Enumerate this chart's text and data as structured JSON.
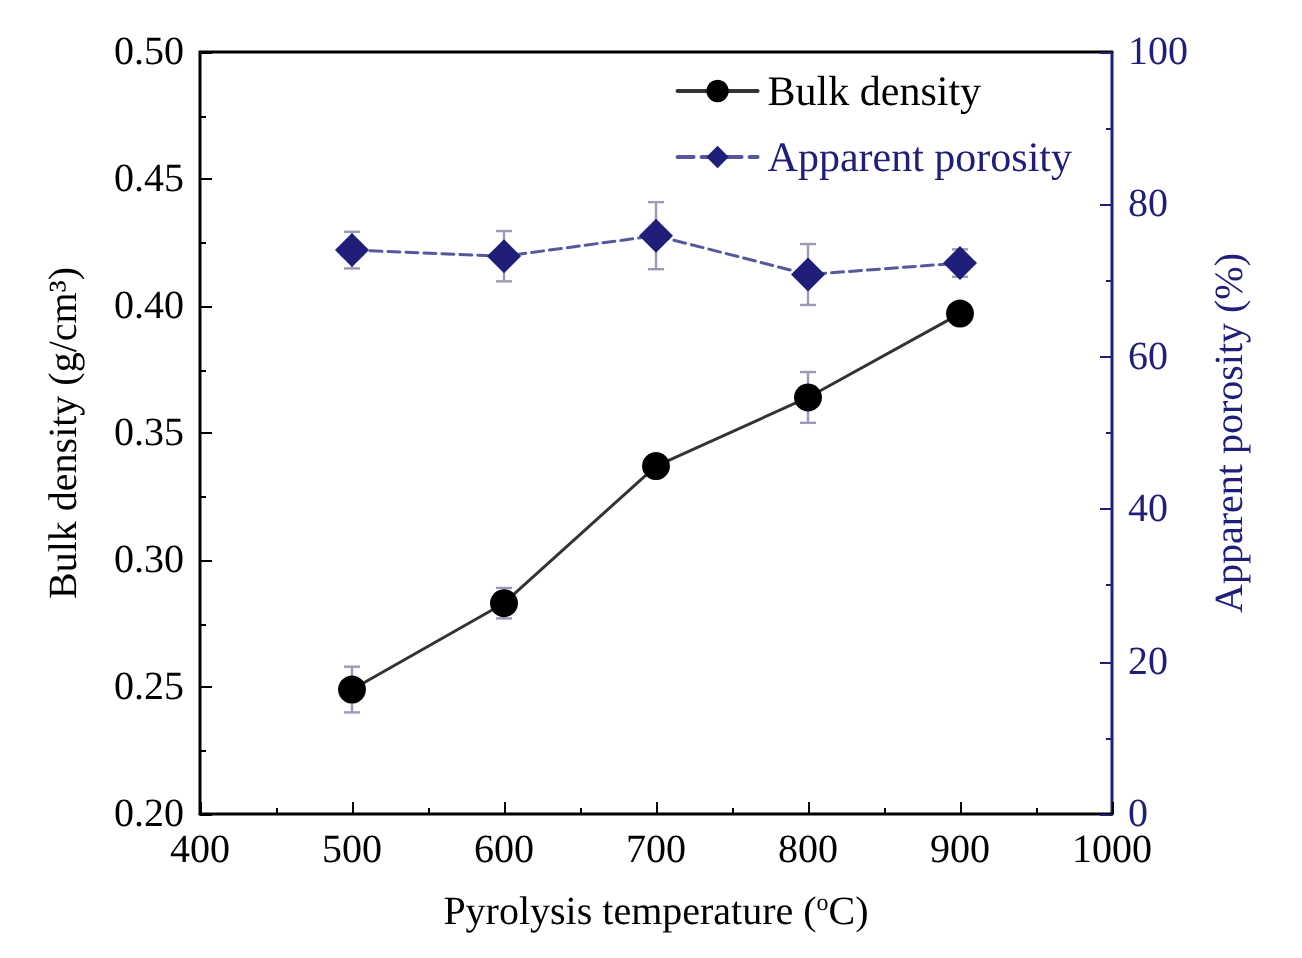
{
  "chart_data": {
    "type": "line",
    "xlabel": "Pyrolysis temperature ($^{o}$C)",
    "ylabel": "Bulk density (g/cm³)",
    "y2label": "Apparent porosity (%)",
    "x": [
      500,
      600,
      700,
      800,
      900
    ],
    "series": [
      {
        "name": "Bulk density",
        "color": "#000000",
        "marker": "circle",
        "line_style": "solid",
        "values": [
          0.249,
          0.283,
          0.337,
          0.364,
          0.397
        ],
        "errors": [
          0.009,
          0.006,
          null,
          0.01,
          null
        ]
      },
      {
        "name": "Apparent porosity",
        "color": "#1f1f7a",
        "marker": "diamond",
        "line_style": "dashed",
        "axis": "y2",
        "values": [
          74.0,
          73.2,
          75.9,
          70.8,
          72.3
        ],
        "errors": [
          2.4,
          3.3,
          4.4,
          4.0,
          1.8
        ]
      }
    ],
    "xlim": [
      400,
      1000
    ],
    "xticks": [
      400,
      500,
      600,
      700,
      800,
      900,
      1000
    ],
    "ylim": [
      0.2,
      0.5
    ],
    "yticks": [
      {
        "value": 0.2,
        "label": "0.20"
      },
      0.25,
      {
        "value": 0.3,
        "label": "0.30"
      },
      0.35,
      {
        "value": 0.4,
        "label": "0.40"
      },
      0.45,
      {
        "value": 0.5,
        "label": "0.50"
      }
    ],
    "y2lim": [
      0,
      100
    ],
    "y2ticks": [
      0,
      20,
      40,
      60,
      80,
      100
    ],
    "grid": false,
    "legend": "top right"
  }
}
